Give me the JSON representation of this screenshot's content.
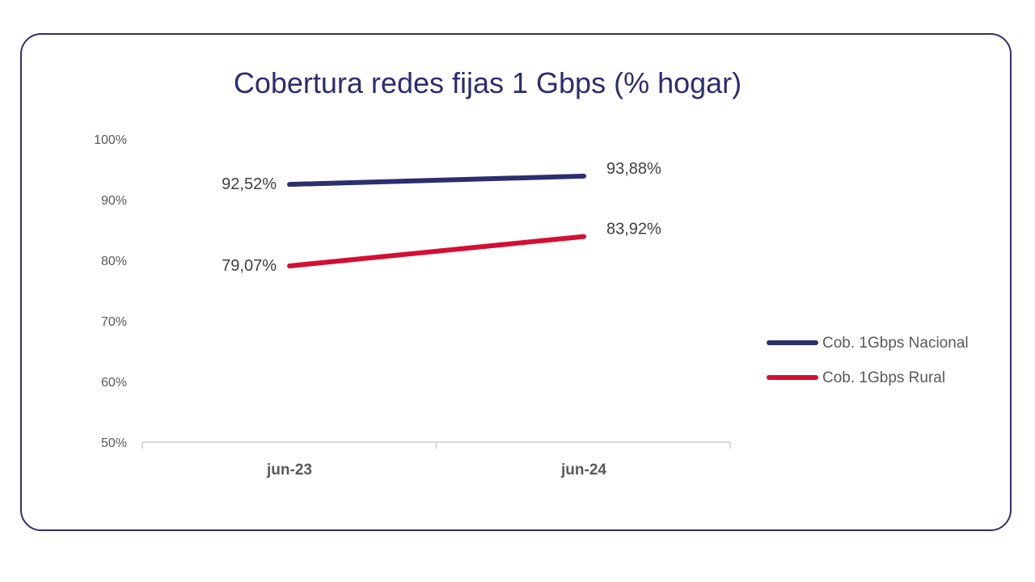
{
  "chart_data": {
    "type": "line",
    "title": "Cobertura redes fijas 1 Gbps (% hogar)",
    "categories": [
      "jun-23",
      "jun-24"
    ],
    "ylim": [
      50,
      100
    ],
    "yticks": [
      50,
      60,
      70,
      80,
      90,
      100
    ],
    "ytick_labels": [
      "50%",
      "60%",
      "70%",
      "80%",
      "90%",
      "100%"
    ],
    "grid": false,
    "legend_position": "right",
    "series": [
      {
        "name": "Cob. 1Gbps Nacional",
        "values": [
          92.52,
          93.88
        ],
        "labels": [
          "92,52%",
          "93,88%"
        ],
        "color": "#2e2d6e"
      },
      {
        "name": "Cob. 1Gbps Rural",
        "values": [
          79.07,
          83.92
        ],
        "labels": [
          "79,07%",
          "83,92%"
        ],
        "color": "#d40f35"
      }
    ]
  }
}
